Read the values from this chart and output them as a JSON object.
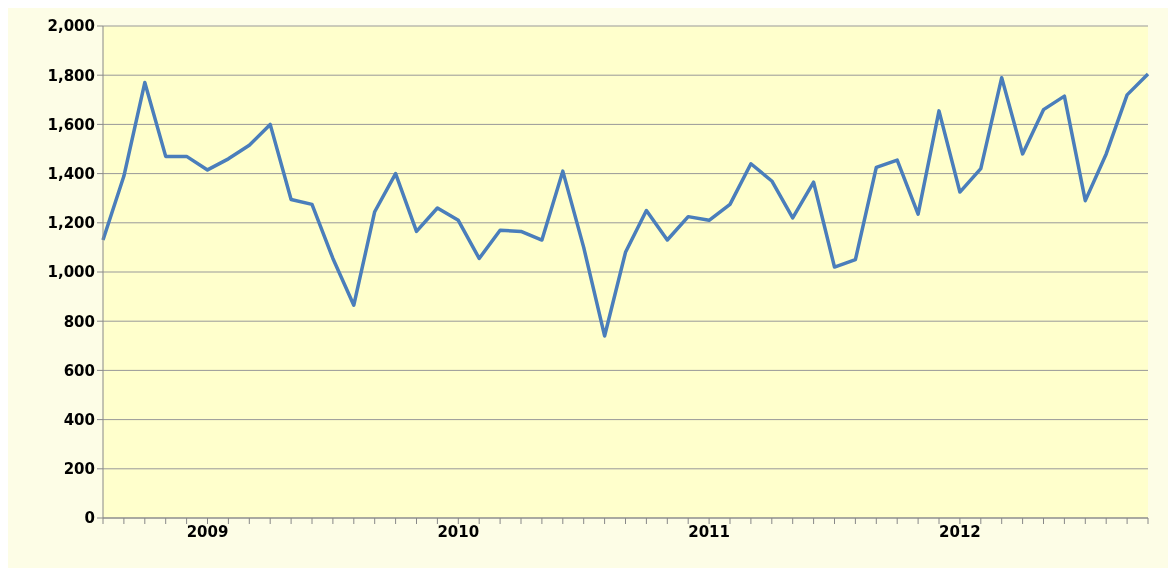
{
  "chart_data": {
    "type": "line",
    "categories": [
      null,
      null,
      null,
      null,
      null,
      "2009",
      null,
      null,
      null,
      null,
      null,
      null,
      null,
      null,
      null,
      null,
      null,
      "2010",
      null,
      null,
      null,
      null,
      null,
      null,
      null,
      null,
      null,
      null,
      null,
      "2011",
      null,
      null,
      null,
      null,
      null,
      null,
      null,
      null,
      null,
      null,
      null,
      "2012",
      null,
      null,
      null,
      null,
      null,
      null,
      null,
      null,
      null
    ],
    "series": [
      {
        "color": "#4a7ebb",
        "values": [
          1130,
          1390,
          1770,
          1470,
          1470,
          1415,
          1460,
          1515,
          1600,
          1295,
          1275,
          1055,
          865,
          1245,
          1400,
          1165,
          1260,
          1210,
          1055,
          1170,
          1165,
          1130,
          1410,
          1100,
          740,
          1080,
          1250,
          1130,
          1225,
          1210,
          1275,
          1440,
          1370,
          1220,
          1365,
          1020,
          1050,
          1425,
          1455,
          1235,
          1655,
          1325,
          1420,
          1790,
          1480,
          1660,
          1715,
          1290,
          1480,
          1720,
          1805
        ]
      }
    ],
    "ylim": [
      0,
      2000
    ],
    "yticks": [
      0,
      200,
      400,
      600,
      800,
      {
        "value": 1000,
        "label": "1,000"
      },
      {
        "value": 1200,
        "label": "1,200"
      },
      {
        "value": 1400,
        "label": "1,400"
      },
      {
        "value": 1600,
        "label": "1,600"
      },
      {
        "value": 1800,
        "label": "1,800"
      },
      {
        "value": 2000,
        "label": "2,000"
      }
    ],
    "grid": "y",
    "marker": "none",
    "line_style": "solid",
    "legend": false
  }
}
